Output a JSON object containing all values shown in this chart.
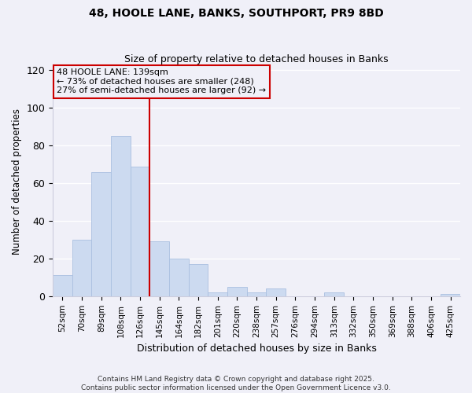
{
  "title1": "48, HOOLE LANE, BANKS, SOUTHPORT, PR9 8BD",
  "title2": "Size of property relative to detached houses in Banks",
  "xlabel": "Distribution of detached houses by size in Banks",
  "ylabel": "Number of detached properties",
  "bar_labels": [
    "52sqm",
    "70sqm",
    "89sqm",
    "108sqm",
    "126sqm",
    "145sqm",
    "164sqm",
    "182sqm",
    "201sqm",
    "220sqm",
    "238sqm",
    "257sqm",
    "276sqm",
    "294sqm",
    "313sqm",
    "332sqm",
    "350sqm",
    "369sqm",
    "388sqm",
    "406sqm",
    "425sqm"
  ],
  "bar_values": [
    11,
    30,
    66,
    85,
    69,
    29,
    20,
    17,
    2,
    5,
    2,
    4,
    0,
    0,
    2,
    0,
    0,
    0,
    0,
    0,
    1
  ],
  "bar_color": "#ccdaf0",
  "bar_edge_color": "#aac0e0",
  "vline_color": "#cc0000",
  "annotation_text": "48 HOOLE LANE: 139sqm\n← 73% of detached houses are smaller (248)\n27% of semi-detached houses are larger (92) →",
  "ylim": [
    0,
    122
  ],
  "yticks": [
    0,
    20,
    40,
    60,
    80,
    100,
    120
  ],
  "footnote1": "Contains HM Land Registry data © Crown copyright and database right 2025.",
  "footnote2": "Contains public sector information licensed under the Open Government Licence v3.0.",
  "bg_color": "#f0f0f8",
  "grid_color": "#ffffff"
}
